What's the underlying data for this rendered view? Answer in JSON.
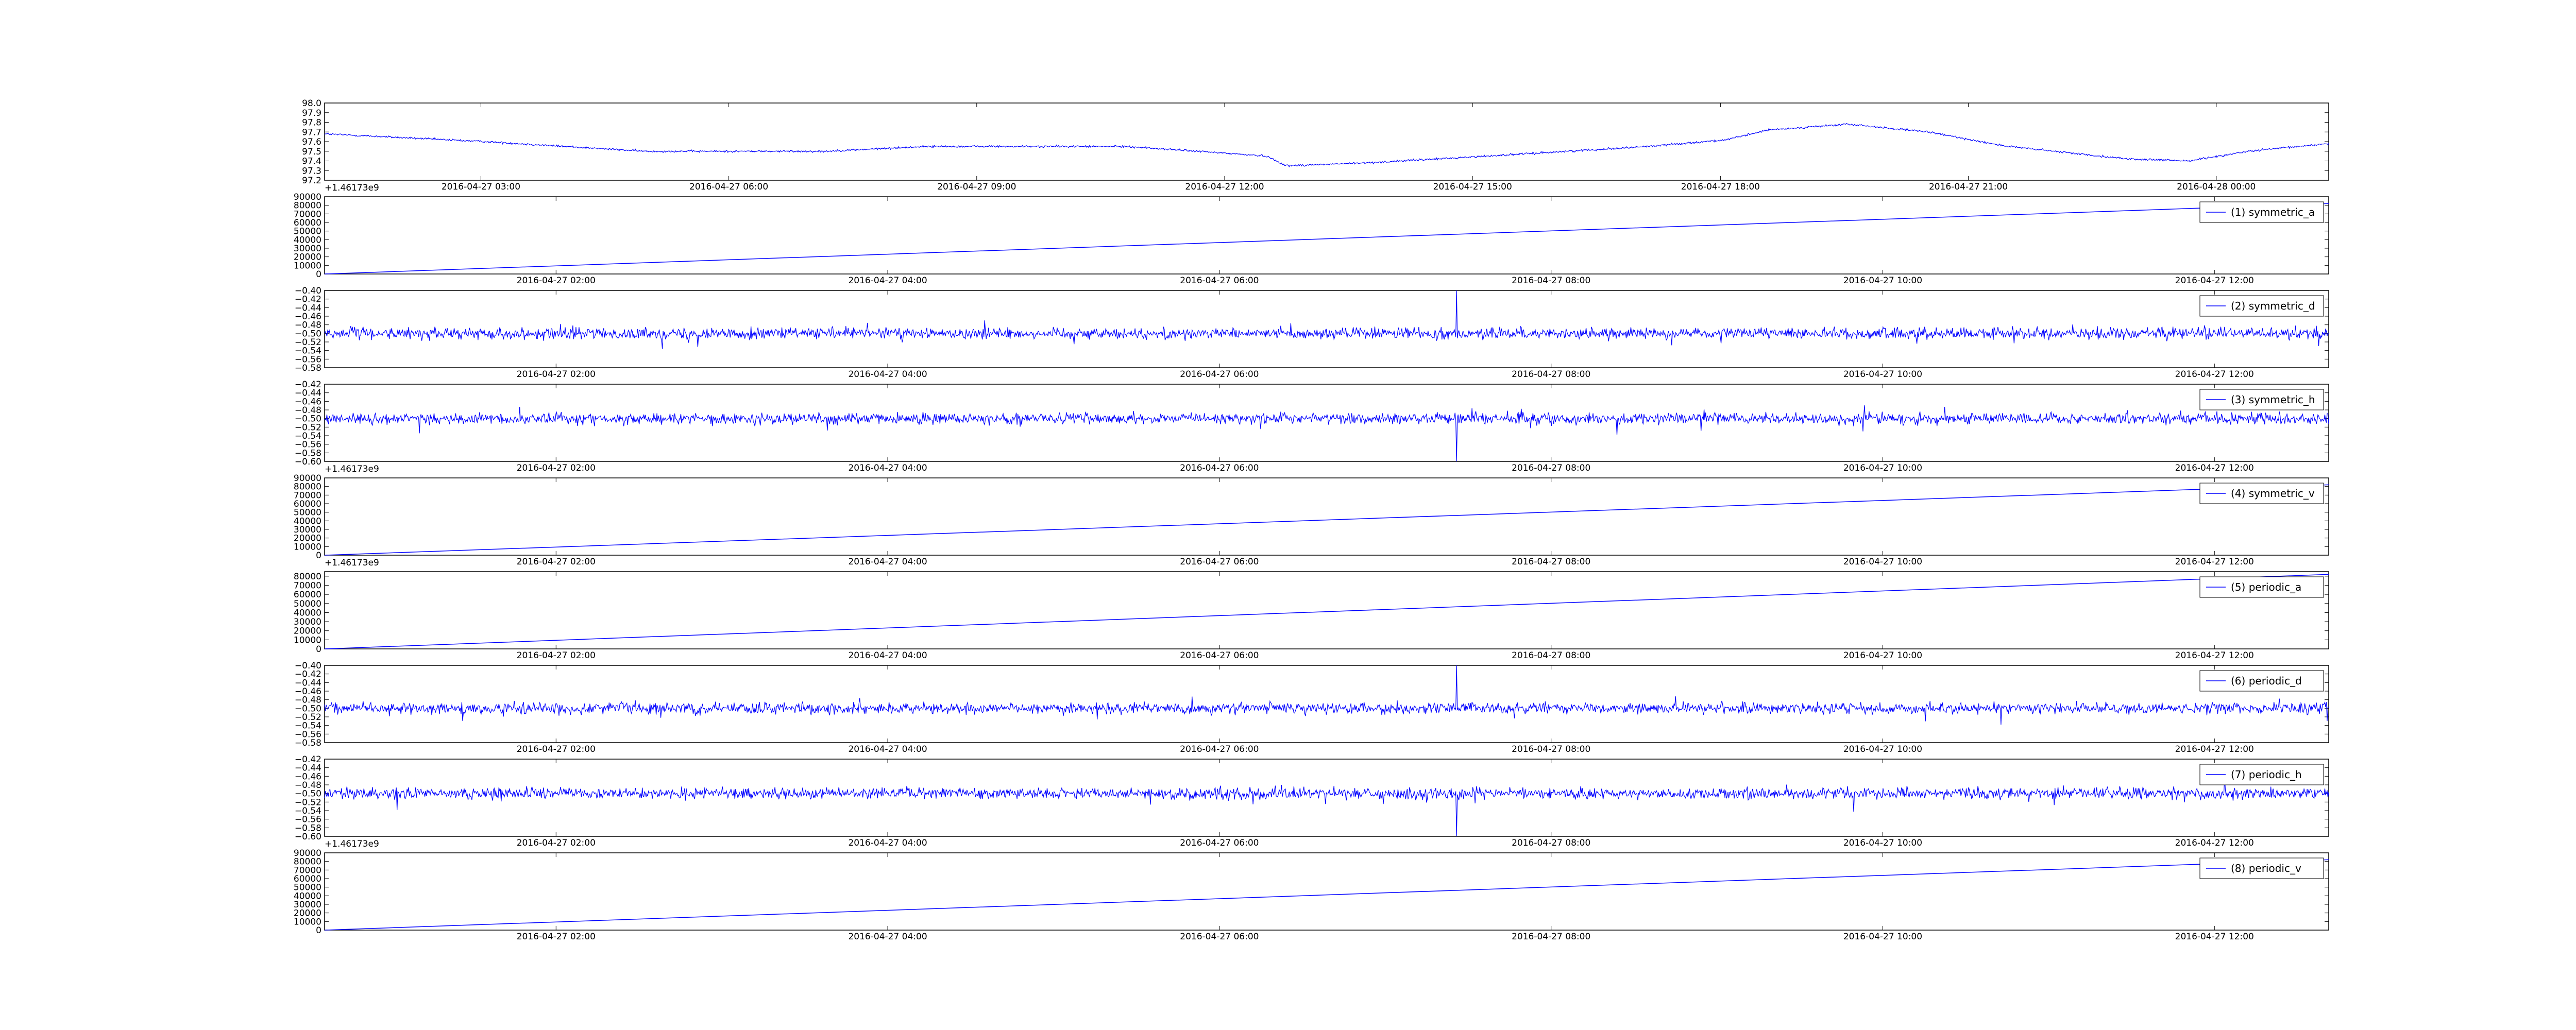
{
  "figure": {
    "background": "#ffffff",
    "line_color": "#0000ff"
  },
  "chart_data": [
    {
      "type": "line",
      "series": [
        {
          "name": "",
          "kind": "trend_noisy"
        }
      ],
      "x_ticks": [
        "2016-04-27 03:00",
        "2016-04-27 06:00",
        "2016-04-27 09:00",
        "2016-04-27 12:00",
        "2016-04-27 15:00",
        "2016-04-27 18:00",
        "2016-04-27 21:00",
        "2016-04-28 00:00"
      ],
      "y_ticks": [
        "97.2",
        "97.3",
        "97.4",
        "97.5",
        "97.6",
        "97.7",
        "97.8",
        "97.9",
        "98.0"
      ],
      "ylim": [
        97.2,
        98.0
      ],
      "offset_text": "+1.46173e9",
      "legend": null
    },
    {
      "type": "line",
      "series": [
        {
          "name": "(1) symmetric_a",
          "kind": "ramp"
        }
      ],
      "x_ticks": [
        "2016-04-27 02:00",
        "2016-04-27 04:00",
        "2016-04-27 06:00",
        "2016-04-27 08:00",
        "2016-04-27 10:00",
        "2016-04-27 12:00"
      ],
      "y_ticks": [
        "0",
        "10000",
        "20000",
        "30000",
        "40000",
        "50000",
        "60000",
        "70000",
        "80000",
        "90000"
      ],
      "ylim": [
        0,
        90000
      ],
      "ramp_end": 82000,
      "offset_text": "",
      "legend": "top-right"
    },
    {
      "type": "line",
      "series": [
        {
          "name": "(2) symmetric_d",
          "kind": "noise",
          "center": -0.5,
          "spike": "up"
        }
      ],
      "x_ticks": [
        "2016-04-27 02:00",
        "2016-04-27 04:00",
        "2016-04-27 06:00",
        "2016-04-27 08:00",
        "2016-04-27 10:00",
        "2016-04-27 12:00"
      ],
      "y_ticks": [
        "−0.58",
        "−0.56",
        "−0.54",
        "−0.52",
        "−0.50",
        "−0.48",
        "−0.46",
        "−0.44",
        "−0.42",
        "−0.40"
      ],
      "ylim": [
        -0.58,
        -0.4
      ],
      "offset_text": "",
      "legend": "top-right"
    },
    {
      "type": "line",
      "series": [
        {
          "name": "(3) symmetric_h",
          "kind": "noise",
          "center": -0.5,
          "spike": "down"
        }
      ],
      "x_ticks": [
        "2016-04-27 02:00",
        "2016-04-27 04:00",
        "2016-04-27 06:00",
        "2016-04-27 08:00",
        "2016-04-27 10:00",
        "2016-04-27 12:00"
      ],
      "y_ticks": [
        "−0.60",
        "−0.58",
        "−0.56",
        "−0.54",
        "−0.52",
        "−0.50",
        "−0.48",
        "−0.46",
        "−0.44",
        "−0.42"
      ],
      "ylim": [
        -0.6,
        -0.42
      ],
      "offset_text": "+1.46173e9",
      "legend": "top-right"
    },
    {
      "type": "line",
      "series": [
        {
          "name": "(4) symmetric_v",
          "kind": "ramp"
        }
      ],
      "x_ticks": [
        "2016-04-27 02:00",
        "2016-04-27 04:00",
        "2016-04-27 06:00",
        "2016-04-27 08:00",
        "2016-04-27 10:00",
        "2016-04-27 12:00"
      ],
      "y_ticks": [
        "0",
        "10000",
        "20000",
        "30000",
        "40000",
        "50000",
        "60000",
        "70000",
        "80000",
        "90000"
      ],
      "ylim": [
        0,
        90000
      ],
      "ramp_end": 82000,
      "offset_text": "+1.46173e9",
      "legend": "top-right"
    },
    {
      "type": "line",
      "series": [
        {
          "name": "(5) periodic_a",
          "kind": "ramp"
        }
      ],
      "x_ticks": [
        "2016-04-27 02:00",
        "2016-04-27 04:00",
        "2016-04-27 06:00",
        "2016-04-27 08:00",
        "2016-04-27 10:00",
        "2016-04-27 12:00"
      ],
      "y_ticks": [
        "0",
        "10000",
        "20000",
        "30000",
        "40000",
        "50000",
        "60000",
        "70000",
        "80000"
      ],
      "ylim": [
        0,
        85000
      ],
      "ramp_end": 82000,
      "offset_text": "",
      "legend": "top-right"
    },
    {
      "type": "line",
      "series": [
        {
          "name": "(6) periodic_d",
          "kind": "noise",
          "center": -0.5,
          "spike": "up"
        }
      ],
      "x_ticks": [
        "2016-04-27 02:00",
        "2016-04-27 04:00",
        "2016-04-27 06:00",
        "2016-04-27 08:00",
        "2016-04-27 10:00",
        "2016-04-27 12:00"
      ],
      "y_ticks": [
        "−0.58",
        "−0.56",
        "−0.54",
        "−0.52",
        "−0.50",
        "−0.48",
        "−0.46",
        "−0.44",
        "−0.42",
        "−0.40"
      ],
      "ylim": [
        -0.58,
        -0.4
      ],
      "offset_text": "",
      "legend": "top-right"
    },
    {
      "type": "line",
      "series": [
        {
          "name": "(7) periodic_h",
          "kind": "noise",
          "center": -0.5,
          "spike": "down"
        }
      ],
      "x_ticks": [
        "2016-04-27 02:00",
        "2016-04-27 04:00",
        "2016-04-27 06:00",
        "2016-04-27 08:00",
        "2016-04-27 10:00",
        "2016-04-27 12:00"
      ],
      "y_ticks": [
        "−0.60",
        "−0.58",
        "−0.56",
        "−0.54",
        "−0.52",
        "−0.50",
        "−0.48",
        "−0.46",
        "−0.44",
        "−0.42"
      ],
      "ylim": [
        -0.6,
        -0.42
      ],
      "offset_text": "+1.46173e9",
      "legend": "top-right"
    },
    {
      "type": "line",
      "series": [
        {
          "name": "(8) periodic_v",
          "kind": "ramp"
        }
      ],
      "x_ticks": [
        "2016-04-27 02:00",
        "2016-04-27 04:00",
        "2016-04-27 06:00",
        "2016-04-27 08:00",
        "2016-04-27 10:00",
        "2016-04-27 12:00"
      ],
      "y_ticks": [
        "0",
        "10000",
        "20000",
        "30000",
        "40000",
        "50000",
        "60000",
        "70000",
        "80000",
        "90000"
      ],
      "ylim": [
        0,
        90000
      ],
      "ramp_end": 82000,
      "offset_text": "",
      "legend": "top-right"
    }
  ]
}
